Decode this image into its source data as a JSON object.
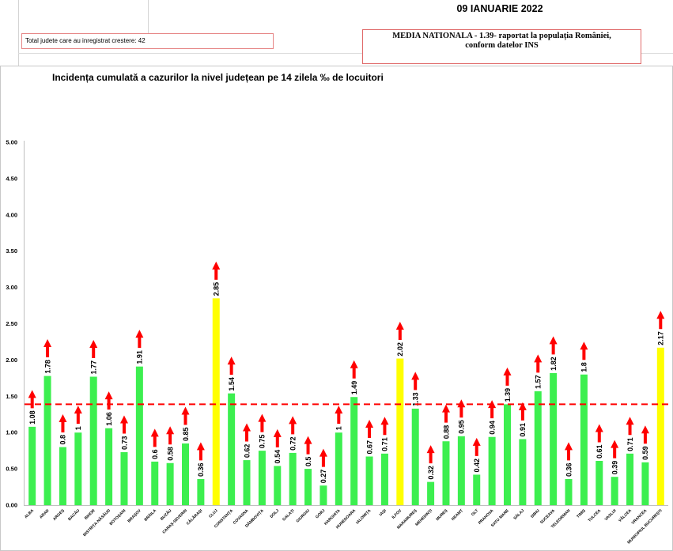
{
  "header": {
    "date": "09 IANUARIE 2022",
    "total_increase_text": "Total judete care au inregistrat crestere: 42",
    "national_average_line1": "MEDIA NATIONALA - 1.39- raportat la populația României,",
    "national_average_line2": "conform datelor INS"
  },
  "chart_data": {
    "type": "bar",
    "title": "Incidența cumulată a cazurilor la nivel județean pe 14 zilela ‰ de locuitori",
    "xlabel": "",
    "ylabel": "",
    "categories": [
      "ALBA",
      "ARAD",
      "ARGEȘ",
      "BACĂU",
      "BIHOR",
      "BISTRIȚA-NĂSĂUD",
      "BOTOȘANI",
      "BRAȘOV",
      "BRĂILA",
      "BUZĂU",
      "CARAȘ-SEVERIN",
      "CĂLĂRAȘI",
      "CLUJ",
      "CONSTANȚA",
      "COVASNA",
      "DÂMBOVIȚA",
      "DOLJ",
      "GALAȚI",
      "GIURGIU",
      "GORJ",
      "HARGHITA",
      "HUNEDOARA",
      "IALOMIȚA",
      "IAȘI",
      "ILFOV",
      "MARAMUREȘ",
      "MEHEDINȚI",
      "MUREȘ",
      "NEAMȚ",
      "OLT",
      "PRAHOVA",
      "SATU MARE",
      "SĂLAJ",
      "SIBIU",
      "SUCEAVA",
      "TELEORMAN",
      "TIMIȘ",
      "TULCEA",
      "VASLUI",
      "VÂLCEA",
      "VRANCEA",
      "MUNICIPIUL BUCUREȘTI"
    ],
    "values": [
      1.08,
      1.78,
      0.8,
      1,
      1.77,
      1.06,
      0.73,
      1.91,
      0.6,
      0.58,
      0.85,
      0.36,
      2.85,
      1.54,
      0.62,
      0.75,
      0.54,
      0.72,
      0.5,
      0.27,
      1,
      1.49,
      0.67,
      0.71,
      2.02,
      1.33,
      0.32,
      0.88,
      0.95,
      0.42,
      0.94,
      1.39,
      0.91,
      1.57,
      1.82,
      0.36,
      1.8,
      0.61,
      0.39,
      0.71,
      0.59,
      2.17
    ],
    "ylim": [
      0,
      5
    ],
    "yticks": [
      "0.00",
      "0.50",
      "1.00",
      "1.50",
      "2.00",
      "2.50",
      "3.00",
      "3.50",
      "4.00",
      "4.50",
      "5.00"
    ],
    "grid": false,
    "legend": false,
    "data_labels": true,
    "reference_line": {
      "value": 1.39,
      "dashed": true,
      "color": "#ff0000"
    },
    "highlighted_categories": [
      "CLUJ",
      "ILFOV",
      "MUNICIPIUL BUCUREȘTI"
    ],
    "trend_icon": "arrow-up-icon",
    "colors": {
      "bar": "#3cef4f",
      "highlight_bar": "#ffff00",
      "arrow": "#ff0000",
      "axis": "#bfbfbf"
    }
  },
  "colors": {
    "box_border": "#e06a6a",
    "sheet_gridline": "#d4d4d4"
  }
}
